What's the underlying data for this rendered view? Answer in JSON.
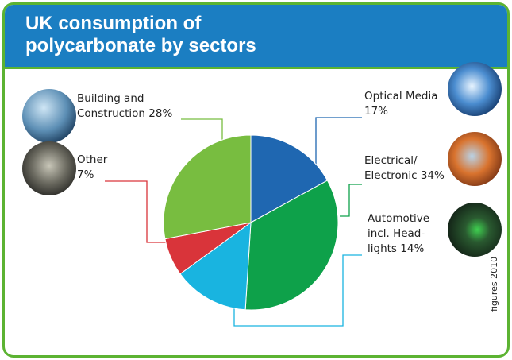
{
  "chart_data": {
    "type": "pie",
    "title": "UK consumption of polycarbonate by sectors",
    "categories": [
      "Optical Media",
      "Electrical/ Electronic",
      "Automotive incl. Head-lights",
      "Other",
      "Building and Construction"
    ],
    "values": [
      17,
      34,
      14,
      7,
      28
    ],
    "value_labels": [
      "17%",
      "34%",
      "14%",
      "7%",
      "28%"
    ],
    "colors": [
      "#1f67b1",
      "#0ea14a",
      "#19b4e0",
      "#d9343a",
      "#78bd40"
    ],
    "note": "figures 2010"
  }
}
